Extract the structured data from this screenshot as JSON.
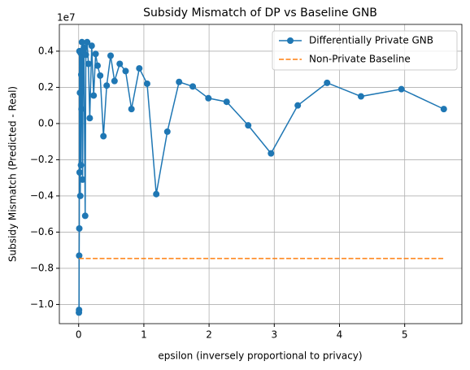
{
  "chart_data": {
    "type": "line",
    "title": "Subsidy Mismatch of DP vs Baseline GNB",
    "x_label": "epsilon (inversely proportional to privacy)",
    "y_label": "Subsidy Mismatch (Predicted - Real)",
    "y_offset_label": "1e7",
    "xlim": [
      -0.296,
      5.877
    ],
    "ylim": [
      -1.106,
      0.548
    ],
    "xticks": [
      0,
      1,
      2,
      3,
      4,
      5
    ],
    "yticks": [
      {
        "value": -1.0,
        "label": "−1.0"
      },
      {
        "value": -0.8,
        "label": "−0.8"
      },
      {
        "value": -0.6,
        "label": "−0.6"
      },
      {
        "value": -0.4,
        "label": "−0.4"
      },
      {
        "value": -0.2,
        "label": "−0.2"
      },
      {
        "value": 0.0,
        "label": "0.0"
      },
      {
        "value": 0.2,
        "label": "0.2"
      },
      {
        "value": 0.4,
        "label": "0.4"
      }
    ],
    "grid": true,
    "legend": "upper right",
    "series": [
      {
        "name": "Differentially Private GNB",
        "color": "#1f77b4",
        "marker": "o",
        "linestyle": "solid",
        "x": [
          0.004,
          0.006,
          0.008,
          0.01,
          0.012,
          0.015,
          0.02,
          0.025,
          0.03,
          0.035,
          0.04,
          0.045,
          0.05,
          0.06,
          0.07,
          0.08,
          0.1,
          0.11,
          0.13,
          0.15,
          0.17,
          0.2,
          0.23,
          0.26,
          0.29,
          0.33,
          0.38,
          0.43,
          0.49,
          0.55,
          0.63,
          0.72,
          0.81,
          0.93,
          1.05,
          1.19,
          1.36,
          1.54,
          1.75,
          1.99,
          2.27,
          2.6,
          2.95,
          3.36,
          3.81,
          4.33,
          4.95,
          5.6
        ],
        "values": [
          -1.045,
          -1.03,
          -0.73,
          -0.58,
          0.4,
          -0.27,
          0.17,
          -0.4,
          0.39,
          -0.23,
          0.27,
          0.08,
          0.45,
          -0.31,
          0.4,
          0.42,
          -0.51,
          0.38,
          0.45,
          0.33,
          0.03,
          0.43,
          0.155,
          0.385,
          0.32,
          0.265,
          -0.07,
          0.21,
          0.375,
          0.235,
          0.33,
          0.29,
          0.08,
          0.305,
          0.22,
          -0.39,
          -0.045,
          0.23,
          0.205,
          0.14,
          0.12,
          -0.01,
          -0.165,
          0.1,
          0.225,
          0.15,
          0.19,
          0.08
        ]
      },
      {
        "name": "Non-Private Baseline",
        "color": "#ff7f0e",
        "marker": "none",
        "linestyle": "dashed",
        "x": [
          0.004,
          5.6
        ],
        "values": [
          -0.746,
          -0.746
        ]
      }
    ]
  }
}
